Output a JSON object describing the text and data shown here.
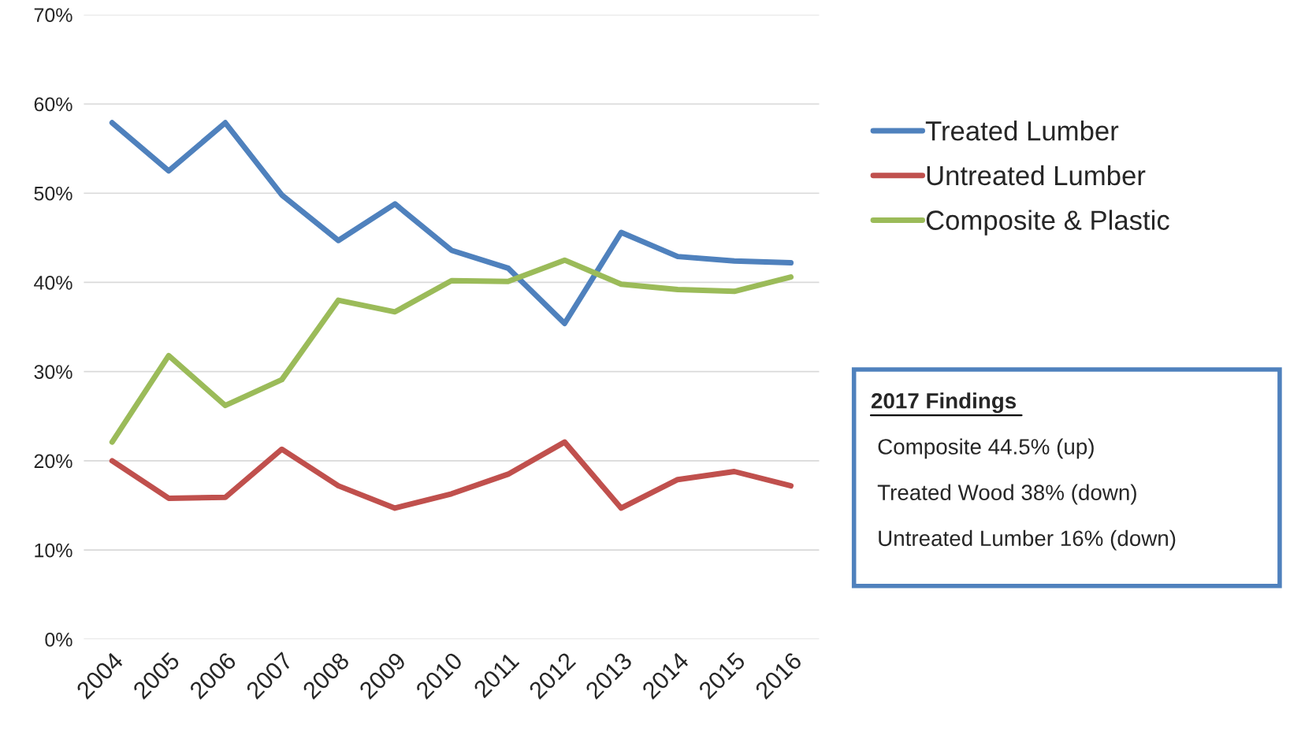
{
  "chart_data": {
    "type": "line",
    "categories": [
      "2004",
      "2005",
      "2006",
      "2007",
      "2008",
      "2009",
      "2010",
      "2011",
      "2012",
      "2013",
      "2014",
      "2015",
      "2016"
    ],
    "series": [
      {
        "name": "Treated Lumber",
        "color": "#4f81bd",
        "values": [
          57.9,
          52.5,
          57.9,
          49.8,
          44.7,
          48.8,
          43.6,
          41.6,
          35.4,
          45.6,
          42.9,
          42.4,
          42.2
        ]
      },
      {
        "name": "Untreated Lumber",
        "color": "#c0504d",
        "values": [
          20.0,
          15.8,
          15.9,
          21.3,
          17.2,
          14.7,
          16.3,
          18.5,
          22.1,
          14.7,
          17.9,
          18.8,
          17.2
        ]
      },
      {
        "name": "Composite & Plastic",
        "color": "#9bbb59",
        "values": [
          22.1,
          31.8,
          26.2,
          29.1,
          38.0,
          36.7,
          40.2,
          40.1,
          42.5,
          39.8,
          39.2,
          39.0,
          40.6
        ]
      }
    ],
    "ylim": [
      0,
      70
    ],
    "yticks": [
      {
        "value": 0,
        "label": "0%"
      },
      {
        "value": 10,
        "label": "10%"
      },
      {
        "value": 20,
        "label": "20%"
      },
      {
        "value": 30,
        "label": "30%"
      },
      {
        "value": 40,
        "label": "40%"
      },
      {
        "value": 50,
        "label": "50%"
      },
      {
        "value": 60,
        "label": "60%"
      },
      {
        "value": 70,
        "label": "70%"
      }
    ],
    "grid": "y",
    "legend": "right",
    "marker": "none",
    "line_style": "solid",
    "annotations": [
      "2017 Findings",
      "Composite 44.5% (up)",
      "Treated Wood 38% (down)",
      "Untreated Lumber 16% (down)"
    ]
  }
}
